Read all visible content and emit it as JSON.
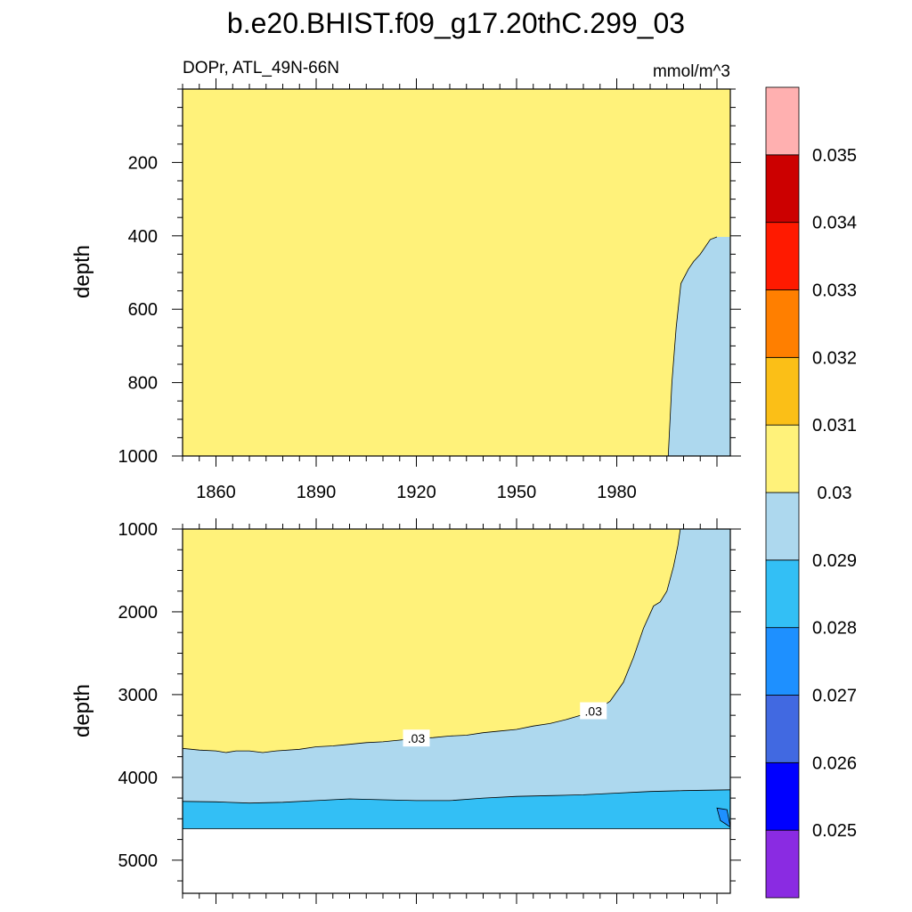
{
  "chart_data": {
    "type": "heatmap",
    "title": "b.e20.BHIST.f09_g17.20thC.299_03",
    "subtitle_left": "DOPr, ATL_49N-66N",
    "subtitle_right": "mmol/m^3",
    "xlim": [
      1850,
      2014
    ],
    "x_ticks": [
      1860,
      1890,
      1920,
      1950,
      1980
    ],
    "colorbar": {
      "levels": [
        0.025,
        0.026,
        0.027,
        0.028,
        0.029,
        0.03,
        0.031,
        0.032,
        0.033,
        0.034,
        0.035
      ],
      "level_labels": [
        "0.025",
        "0.026",
        "0.027",
        "0.028",
        "0.029",
        "0.03",
        "0.031",
        "0.032",
        "0.033",
        "0.034",
        "0.035"
      ],
      "colors": [
        "#8a2be2",
        "#0000ff",
        "#4169e1",
        "#1e90ff",
        "#33bff5",
        "#add8ee",
        "#fff27a",
        "#fbbf17",
        "#ff7f00",
        "#ff1a00",
        "#cc0000",
        "#ffb0b0"
      ]
    },
    "panels": [
      {
        "ylabel": "depth",
        "ylim": [
          0,
          1000
        ],
        "y_ticks": [
          200,
          400,
          600,
          800,
          1000
        ],
        "contours": [
          {
            "level": 0.03,
            "label": "",
            "points": [
              [
                1995.4,
                1000
              ],
              [
                1996.5,
                800
              ],
              [
                1997.8,
                650
              ],
              [
                1999.2,
                530
              ],
              [
                2001.5,
                490
              ],
              [
                2003,
                470
              ],
              [
                2005,
                450
              ],
              [
                2008,
                410
              ],
              [
                2010,
                403
              ]
            ]
          }
        ]
      },
      {
        "ylabel": "depth",
        "ylim": [
          1000,
          5400
        ],
        "y_ticks": [
          1000,
          2000,
          3000,
          4000,
          5000
        ],
        "floor_depth": 4620,
        "contours": [
          {
            "level": 0.03,
            "label": ".03",
            "points": [
              [
                1850,
                3650
              ],
              [
                1855,
                3670
              ],
              [
                1860,
                3680
              ],
              [
                1863,
                3700
              ],
              [
                1866,
                3680
              ],
              [
                1870,
                3680
              ],
              [
                1874,
                3700
              ],
              [
                1878,
                3680
              ],
              [
                1885,
                3660
              ],
              [
                1890,
                3630
              ],
              [
                1895,
                3620
              ],
              [
                1900,
                3600
              ],
              [
                1905,
                3580
              ],
              [
                1910,
                3570
              ],
              [
                1915,
                3550
              ],
              [
                1920,
                3530
              ],
              [
                1925,
                3520
              ],
              [
                1930,
                3500
              ],
              [
                1935,
                3490
              ],
              [
                1940,
                3460
              ],
              [
                1945,
                3440
              ],
              [
                1950,
                3420
              ],
              [
                1955,
                3380
              ],
              [
                1960,
                3350
              ],
              [
                1965,
                3300
              ],
              [
                1970,
                3240
              ],
              [
                1975,
                3160
              ],
              [
                1978,
                3080
              ],
              [
                1982,
                2850
              ],
              [
                1985,
                2550
              ],
              [
                1988,
                2200
              ],
              [
                1991,
                1930
              ],
              [
                1993,
                1880
              ],
              [
                1995,
                1750
              ],
              [
                1997,
                1450
              ],
              [
                1998.3,
                1200
              ],
              [
                1999,
                1000
              ]
            ]
          },
          {
            "level": 0.029,
            "label": "",
            "points": [
              [
                1850,
                4290
              ],
              [
                1860,
                4295
              ],
              [
                1870,
                4310
              ],
              [
                1880,
                4300
              ],
              [
                1890,
                4280
              ],
              [
                1900,
                4260
              ],
              [
                1910,
                4270
              ],
              [
                1920,
                4280
              ],
              [
                1930,
                4280
              ],
              [
                1940,
                4250
              ],
              [
                1950,
                4230
              ],
              [
                1960,
                4220
              ],
              [
                1970,
                4210
              ],
              [
                1980,
                4190
              ],
              [
                1990,
                4170
              ],
              [
                2000,
                4160
              ],
              [
                2014,
                4150
              ]
            ]
          },
          {
            "level": 0.028,
            "label": "",
            "points": [
              [
                2010,
                4370
              ],
              [
                2013,
                4390
              ],
              [
                2014,
                4600
              ],
              [
                2011,
                4520
              ],
              [
                2010,
                4370
              ]
            ]
          }
        ]
      }
    ]
  }
}
